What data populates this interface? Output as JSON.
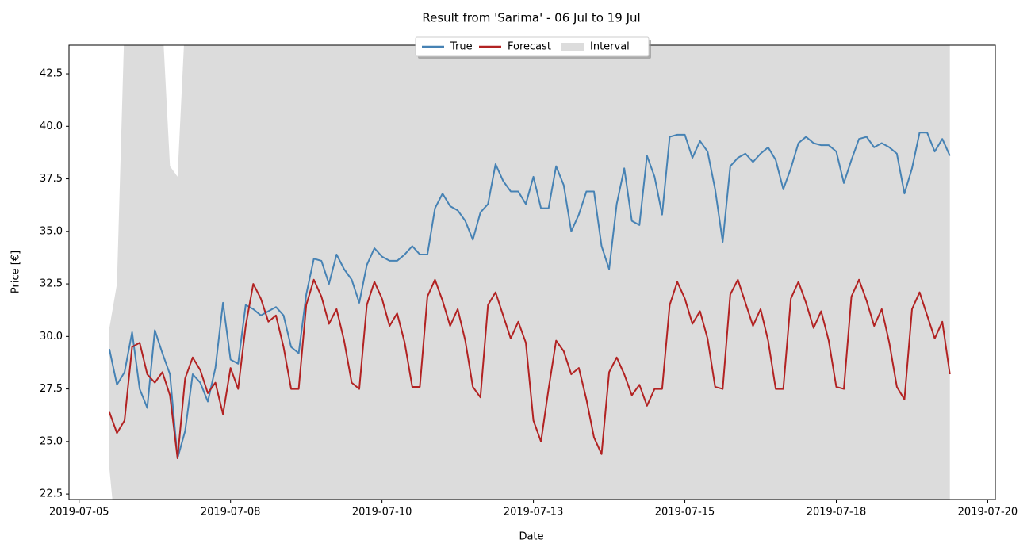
{
  "chart_data": {
    "type": "line",
    "title": "Result from 'Sarima' - 06 Jul to 19 Jul",
    "x_label": "Date",
    "y_label": "Price [€]",
    "x": [
      "2019-07-06 00:00",
      "2019-07-06 03:00",
      "2019-07-06 06:00",
      "2019-07-06 09:00",
      "2019-07-06 12:00",
      "2019-07-06 15:00",
      "2019-07-06 18:00",
      "2019-07-06 21:00",
      "2019-07-07 00:00",
      "2019-07-07 03:00",
      "2019-07-07 06:00",
      "2019-07-07 09:00",
      "2019-07-07 12:00",
      "2019-07-07 15:00",
      "2019-07-07 18:00",
      "2019-07-07 21:00",
      "2019-07-08 00:00",
      "2019-07-08 03:00",
      "2019-07-08 06:00",
      "2019-07-08 09:00",
      "2019-07-08 12:00",
      "2019-07-08 15:00",
      "2019-07-08 18:00",
      "2019-07-08 21:00",
      "2019-07-09 00:00",
      "2019-07-09 03:00",
      "2019-07-09 06:00",
      "2019-07-09 09:00",
      "2019-07-09 12:00",
      "2019-07-09 15:00",
      "2019-07-09 18:00",
      "2019-07-09 21:00",
      "2019-07-10 00:00",
      "2019-07-10 03:00",
      "2019-07-10 06:00",
      "2019-07-10 09:00",
      "2019-07-10 12:00",
      "2019-07-10 15:00",
      "2019-07-10 18:00",
      "2019-07-10 21:00",
      "2019-07-11 00:00",
      "2019-07-11 03:00",
      "2019-07-11 06:00",
      "2019-07-11 09:00",
      "2019-07-11 12:00",
      "2019-07-11 15:00",
      "2019-07-11 18:00",
      "2019-07-11 21:00",
      "2019-07-12 00:00",
      "2019-07-12 03:00",
      "2019-07-12 06:00",
      "2019-07-12 09:00",
      "2019-07-12 12:00",
      "2019-07-12 15:00",
      "2019-07-12 18:00",
      "2019-07-12 21:00",
      "2019-07-13 00:00",
      "2019-07-13 03:00",
      "2019-07-13 06:00",
      "2019-07-13 09:00",
      "2019-07-13 12:00",
      "2019-07-13 15:00",
      "2019-07-13 18:00",
      "2019-07-13 21:00",
      "2019-07-14 00:00",
      "2019-07-14 03:00",
      "2019-07-14 06:00",
      "2019-07-14 09:00",
      "2019-07-14 12:00",
      "2019-07-14 15:00",
      "2019-07-14 18:00",
      "2019-07-14 21:00",
      "2019-07-15 00:00",
      "2019-07-15 03:00",
      "2019-07-15 06:00",
      "2019-07-15 09:00",
      "2019-07-15 12:00",
      "2019-07-15 15:00",
      "2019-07-15 18:00",
      "2019-07-15 21:00",
      "2019-07-16 00:00",
      "2019-07-16 03:00",
      "2019-07-16 06:00",
      "2019-07-16 09:00",
      "2019-07-16 12:00",
      "2019-07-16 15:00",
      "2019-07-16 18:00",
      "2019-07-16 21:00",
      "2019-07-17 00:00",
      "2019-07-17 03:00",
      "2019-07-17 06:00",
      "2019-07-17 09:00",
      "2019-07-17 12:00",
      "2019-07-17 15:00",
      "2019-07-17 18:00",
      "2019-07-17 21:00",
      "2019-07-18 00:00",
      "2019-07-18 03:00",
      "2019-07-18 06:00",
      "2019-07-18 09:00",
      "2019-07-18 12:00",
      "2019-07-18 15:00",
      "2019-07-18 18:00",
      "2019-07-18 21:00",
      "2019-07-19 00:00",
      "2019-07-19 03:00",
      "2019-07-19 06:00",
      "2019-07-19 09:00",
      "2019-07-19 12:00",
      "2019-07-19 15:00",
      "2019-07-19 18:00",
      "2019-07-19 21:00"
    ],
    "series": [
      {
        "name": "True",
        "color": "#4682b4",
        "values": [
          29.4,
          27.7,
          28.3,
          30.2,
          27.5,
          26.6,
          30.3,
          29.2,
          28.2,
          24.2,
          25.5,
          28.2,
          27.8,
          26.9,
          28.5,
          31.6,
          28.9,
          28.7,
          31.5,
          31.3,
          31.0,
          31.2,
          31.4,
          31.0,
          29.5,
          29.2,
          32.0,
          33.7,
          33.6,
          32.5,
          33.9,
          33.2,
          32.7,
          31.6,
          33.4,
          34.2,
          33.8,
          33.6,
          33.6,
          33.9,
          34.3,
          33.9,
          33.9,
          36.1,
          36.8,
          36.2,
          36.0,
          35.5,
          34.6,
          35.9,
          36.3,
          38.2,
          37.4,
          36.9,
          36.9,
          36.3,
          37.6,
          36.1,
          36.1,
          38.1,
          37.2,
          35.0,
          35.8,
          36.9,
          36.9,
          34.3,
          33.2,
          36.3,
          38.0,
          35.5,
          35.3,
          38.6,
          37.6,
          35.8,
          39.5,
          39.6,
          39.6,
          38.5,
          39.3,
          38.8,
          37.0,
          34.5,
          38.1,
          38.5,
          38.7,
          38.3,
          38.7,
          39.0,
          38.4,
          37.0,
          38.0,
          39.2,
          39.5,
          39.2,
          39.1,
          39.1,
          38.8,
          37.3,
          38.4,
          39.4,
          39.5,
          39.0,
          39.2,
          39.0,
          38.7,
          36.8,
          38.0,
          39.7,
          39.7,
          38.8,
          39.4,
          38.6
        ]
      },
      {
        "name": "Forecast",
        "color": "#b22222",
        "values": [
          26.4,
          25.4,
          26.0,
          29.5,
          29.7,
          28.2,
          27.8,
          28.3,
          27.2,
          24.2,
          28.0,
          29.0,
          28.4,
          27.3,
          27.8,
          26.3,
          28.5,
          27.5,
          30.5,
          32.5,
          31.8,
          30.7,
          31.0,
          29.5,
          27.5,
          27.5,
          31.5,
          32.7,
          31.9,
          30.6,
          31.3,
          29.8,
          27.8,
          27.5,
          31.5,
          32.6,
          31.8,
          30.5,
          31.1,
          29.7,
          27.6,
          27.6,
          31.9,
          32.7,
          31.7,
          30.5,
          31.3,
          29.8,
          27.6,
          27.1,
          31.5,
          32.1,
          31.0,
          29.9,
          30.7,
          29.7,
          26.0,
          25.0,
          27.5,
          29.8,
          29.3,
          28.2,
          28.5,
          27.0,
          25.2,
          24.4,
          28.3,
          29.0,
          28.2,
          27.2,
          27.7,
          26.7,
          27.5,
          27.5,
          31.5,
          32.6,
          31.8,
          30.6,
          31.2,
          29.9,
          27.6,
          27.5,
          32.0,
          32.7,
          31.6,
          30.5,
          31.3,
          29.8,
          27.5,
          27.5,
          31.8,
          32.6,
          31.6,
          30.4,
          31.2,
          29.8,
          27.6,
          27.5,
          31.9,
          32.7,
          31.7,
          30.5,
          31.3,
          29.7,
          27.6,
          27.0,
          31.3,
          32.1,
          31.0,
          29.9,
          30.7,
          28.2
        ]
      },
      {
        "name": "Interval",
        "color": "#dcdcdc",
        "lower": [
          23.7,
          20,
          20,
          20,
          20,
          20,
          20,
          20,
          20,
          20,
          20,
          20,
          20,
          20,
          20,
          20,
          20,
          20,
          20,
          20,
          20,
          20,
          20,
          20,
          20,
          20,
          20,
          20,
          20,
          20,
          20,
          20,
          20,
          20,
          20,
          20,
          20,
          20,
          20,
          20,
          20,
          20,
          20,
          20,
          20,
          20,
          20,
          20,
          20,
          20,
          20,
          20,
          20,
          20,
          20,
          20,
          20,
          20,
          20,
          20,
          20,
          20,
          20,
          20,
          20,
          20,
          20,
          20,
          20,
          20,
          20,
          20,
          20,
          20,
          20,
          20,
          20,
          20,
          20,
          20,
          20,
          20,
          20,
          20,
          20,
          20,
          20,
          20,
          20,
          20,
          20,
          20,
          20,
          20,
          20,
          20,
          20,
          20,
          20,
          20,
          20,
          20,
          20,
          20,
          20,
          20,
          20,
          20,
          20,
          20,
          20,
          20
        ],
        "upper": [
          30.4,
          32.5,
          45,
          45,
          45,
          45,
          45,
          45,
          38.1,
          37.6,
          45,
          45,
          45,
          45,
          45,
          45,
          45,
          45,
          45,
          45,
          45,
          45,
          45,
          45,
          45,
          45,
          45,
          45,
          45,
          45,
          45,
          45,
          45,
          45,
          45,
          45,
          45,
          45,
          45,
          45,
          45,
          45,
          45,
          45,
          45,
          45,
          45,
          45,
          45,
          45,
          45,
          45,
          45,
          45,
          45,
          45,
          45,
          45,
          45,
          45,
          45,
          45,
          45,
          45,
          45,
          45,
          45,
          45,
          45,
          45,
          45,
          45,
          45,
          45,
          45,
          45,
          45,
          45,
          45,
          45,
          45,
          45,
          45,
          45,
          45,
          45,
          45,
          45,
          45,
          45,
          45,
          45,
          45,
          45,
          45,
          45,
          45,
          45,
          45,
          45,
          45,
          45,
          45,
          45,
          45,
          45,
          45,
          45,
          45,
          45,
          45,
          45
        ]
      }
    ],
    "xlim": [
      "2019-07-05 08:00",
      "2019-07-20 15:00"
    ],
    "xticks": [
      {
        "value": "2019-07-05 12:00",
        "label": "2019-07-05"
      },
      {
        "value": "2019-07-08 00:00",
        "label": "2019-07-08"
      },
      {
        "value": "2019-07-10 12:00",
        "label": "2019-07-10"
      },
      {
        "value": "2019-07-13 00:00",
        "label": "2019-07-13"
      },
      {
        "value": "2019-07-15 12:00",
        "label": "2019-07-15"
      },
      {
        "value": "2019-07-18 00:00",
        "label": "2019-07-18"
      },
      {
        "value": "2019-07-20 12:00",
        "label": "2019-07-20"
      }
    ],
    "ylim": [
      22.24,
      43.86
    ],
    "yticks": [
      {
        "value": 22.5,
        "label": "22.5"
      },
      {
        "value": 25,
        "label": "25.0"
      },
      {
        "value": 27.5,
        "label": "27.5"
      },
      {
        "value": 30,
        "label": "30.0"
      },
      {
        "value": 32.5,
        "label": "32.5"
      },
      {
        "value": 35,
        "label": "35.0"
      },
      {
        "value": 37.5,
        "label": "37.5"
      },
      {
        "value": 40,
        "label": "40.0"
      },
      {
        "value": 42.5,
        "label": "42.5"
      }
    ],
    "legend": "upper center"
  }
}
